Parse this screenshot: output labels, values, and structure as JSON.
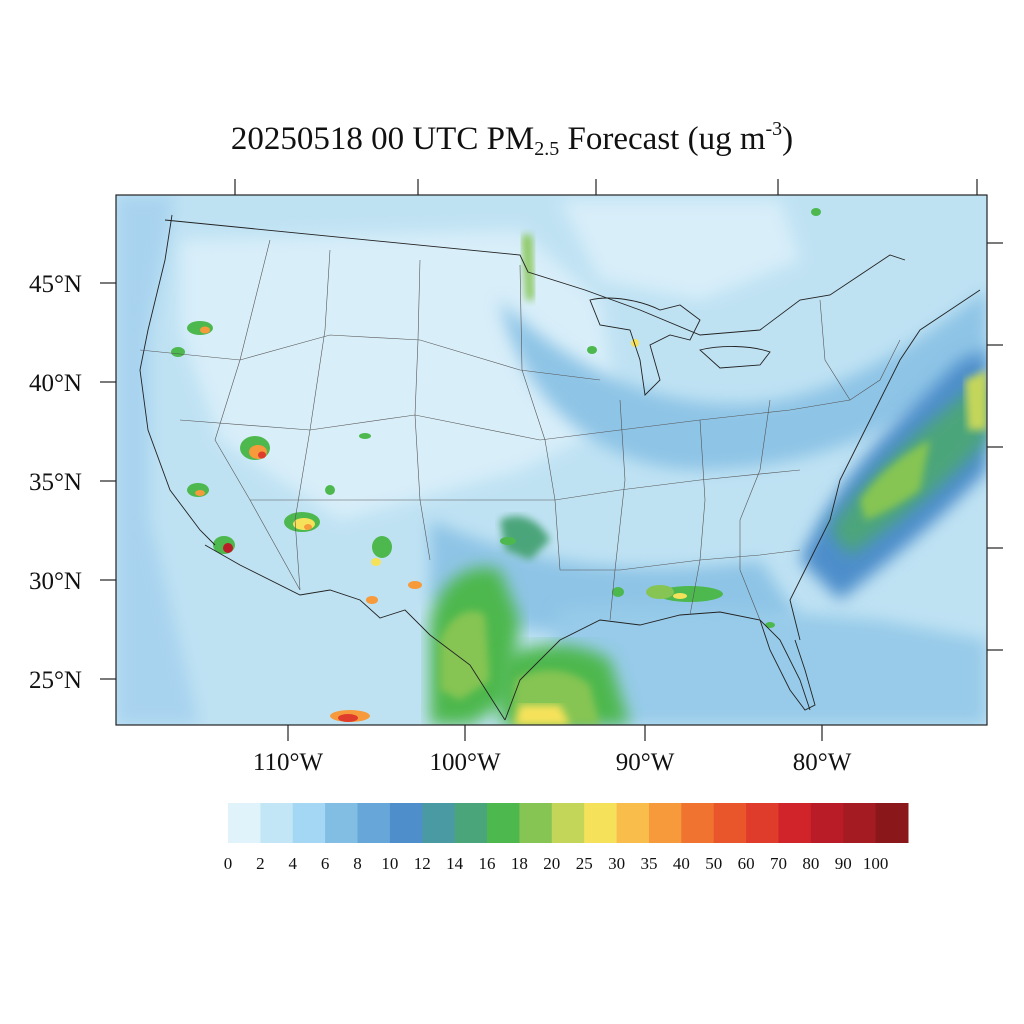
{
  "title": {
    "main": "20250518 00 UTC PM",
    "subscript": "2.5",
    "rest": " Forecast (ug m",
    "superscript": "-3",
    "close": ")"
  },
  "axes": {
    "lat_labels": [
      "45°N",
      "40°N",
      "35°N",
      "30°N",
      "25°N"
    ],
    "lon_labels": [
      "110°W",
      "100°W",
      "90°W",
      "80°W"
    ]
  },
  "colorbar": {
    "labels": [
      "0",
      "2",
      "4",
      "6",
      "8",
      "10",
      "12",
      "14",
      "16",
      "18",
      "20",
      "25",
      "30",
      "35",
      "40",
      "50",
      "60",
      "70",
      "80",
      "90",
      "100"
    ],
    "colors": [
      "#e0f3fb",
      "#c3e6f7",
      "#a3d7f3",
      "#82bde4",
      "#66a6d9",
      "#4d8ecb",
      "#4a9aa3",
      "#4ba57a",
      "#4db84e",
      "#86c553",
      "#c4d65a",
      "#f6e25a",
      "#f8bd4b",
      "#f69a3c",
      "#f07430",
      "#e9562c",
      "#e03c2b",
      "#d0232a",
      "#b91c27",
      "#a51b22",
      "#8a1719"
    ]
  },
  "map": {
    "background_color": "#bfe2f3",
    "hotspot_colors": {
      "green": "#4db84e",
      "lightgreen": "#86c553",
      "yellow": "#f6e25a",
      "orange": "#f69a3c",
      "red": "#e03c2b",
      "darkred": "#b91c27"
    }
  }
}
